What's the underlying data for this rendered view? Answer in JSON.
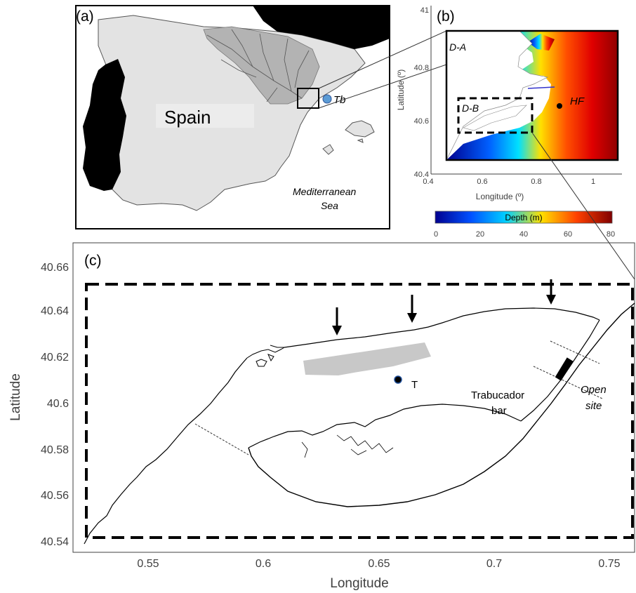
{
  "panel_a": {
    "label": "(a)",
    "country": "Spain",
    "site_marker": "Tb",
    "sea_line1": "Mediterranean",
    "sea_line2": "Sea"
  },
  "panel_b": {
    "label": "(b)",
    "domain_a": "D-A",
    "domain_b": "D-B",
    "station": "HF",
    "xlabel": "Longitude (º)",
    "ylabel": "Latitude (º)",
    "xticks": [
      "0.4",
      "0.6",
      "0.8",
      "1"
    ],
    "yticks": [
      "40.4",
      "40.6",
      "40.8",
      "41"
    ],
    "colorbar": {
      "label": "Depth (m)",
      "ticks": [
        "0",
        "20",
        "40",
        "60",
        "80"
      ],
      "colors": [
        "#00008f",
        "#0050ff",
        "#00d0ff",
        "#ffe000",
        "#ff4000",
        "#800000"
      ]
    }
  },
  "panel_c": {
    "label": "(c)",
    "xlabel": "Longitude",
    "ylabel": "Latitude",
    "xticks": [
      "0.55",
      "0.6",
      "0.65",
      "0.7",
      "0.75"
    ],
    "yticks": [
      "40.54",
      "40.56",
      "40.58",
      "40.6",
      "40.62",
      "40.64",
      "40.66"
    ],
    "point_label": "T",
    "bar_line1": "Trabucador",
    "bar_line2": "bar",
    "open_line1": "Open",
    "open_line2": "site"
  }
}
